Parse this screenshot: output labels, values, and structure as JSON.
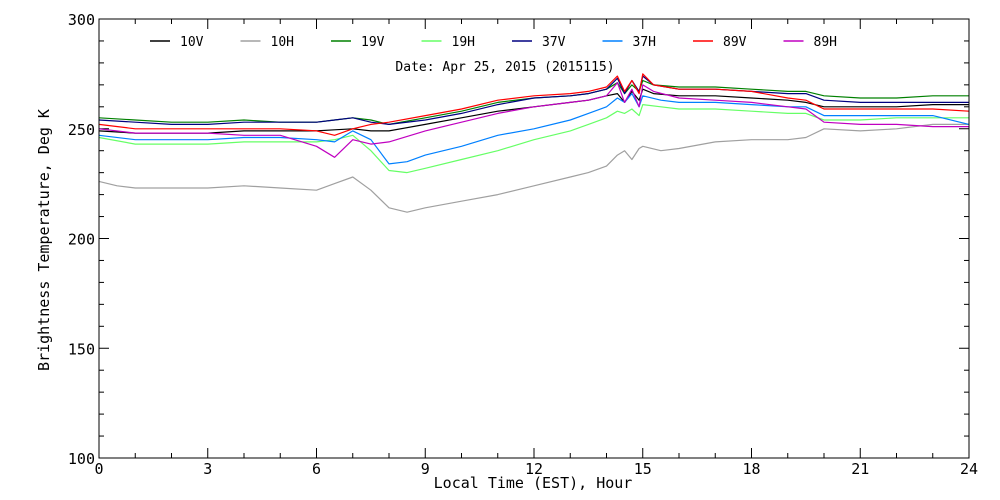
{
  "chart_data": {
    "type": "line",
    "title": "",
    "subtitle": "Date: Apr 25, 2015 (2015115)",
    "xlabel": "Local Time (EST), Hour",
    "ylabel": "Brightness Temperature, Deg K",
    "xlim": [
      0,
      24
    ],
    "ylim": [
      100,
      300
    ],
    "xticks": [
      0,
      3,
      6,
      9,
      12,
      15,
      18,
      21,
      24
    ],
    "yticks": [
      100,
      150,
      200,
      250,
      300
    ],
    "grid": false,
    "legend_position": "top",
    "series": [
      {
        "name": "10V",
        "color": "#000000",
        "x": [
          0,
          1,
          2,
          3,
          4,
          5,
          6,
          6.5,
          7,
          7.5,
          8,
          9,
          10,
          11,
          12,
          13,
          13.5,
          14,
          14.3,
          14.5,
          14.7,
          14.9,
          15,
          15.3,
          16,
          17,
          18,
          19,
          19.5,
          20,
          21,
          22,
          23,
          24
        ],
        "y": [
          249,
          248,
          248,
          248,
          249,
          249,
          249,
          249.5,
          250,
          249,
          249,
          252,
          255,
          258,
          260,
          262,
          263,
          265,
          266,
          262,
          267,
          263,
          268,
          266,
          265,
          265,
          264,
          263,
          262,
          260,
          260,
          260,
          261,
          261
        ]
      },
      {
        "name": "10H",
        "color": "#a0a0a0",
        "x": [
          0,
          0.5,
          1,
          2,
          3,
          4,
          5,
          6,
          6.5,
          7,
          7.5,
          8,
          8.5,
          9,
          10,
          11,
          12,
          13,
          13.5,
          14,
          14.3,
          14.5,
          14.7,
          14.9,
          15,
          15.5,
          16,
          17,
          18,
          19,
          19.5,
          20,
          21,
          22,
          23,
          24
        ],
        "y": [
          226,
          224,
          223,
          223,
          223,
          224,
          223,
          222,
          225,
          228,
          222,
          214,
          212,
          214,
          217,
          220,
          224,
          228,
          230,
          233,
          238,
          240,
          236,
          241,
          242,
          240,
          241,
          244,
          245,
          245,
          246,
          250,
          249,
          250,
          252,
          252
        ]
      },
      {
        "name": "19V",
        "color": "#008000",
        "x": [
          0,
          1,
          2,
          3,
          4,
          5,
          6,
          6.5,
          7,
          7.5,
          8,
          9,
          10,
          11,
          12,
          13,
          13.5,
          14,
          14.3,
          14.5,
          14.7,
          14.9,
          15,
          15.3,
          16,
          17,
          18,
          19,
          19.5,
          20,
          21,
          22,
          23,
          24
        ],
        "y": [
          255,
          254,
          253,
          253,
          254,
          253,
          253,
          254,
          255,
          254,
          252,
          255,
          258,
          262,
          264,
          265,
          266,
          268,
          271,
          266,
          270,
          267,
          272,
          270,
          269,
          269,
          268,
          267,
          267,
          265,
          264,
          264,
          265,
          265
        ]
      },
      {
        "name": "19H",
        "color": "#66ff66",
        "x": [
          0,
          1,
          2,
          3,
          4,
          5,
          6,
          6.5,
          7,
          7.5,
          8,
          8.5,
          9,
          10,
          11,
          12,
          13,
          13.5,
          14,
          14.3,
          14.5,
          14.7,
          14.9,
          15,
          15.5,
          16,
          17,
          18,
          19,
          19.5,
          20,
          21,
          22,
          23,
          24
        ],
        "y": [
          246,
          243,
          243,
          243,
          244,
          244,
          244,
          245,
          247,
          240,
          231,
          230,
          232,
          236,
          240,
          245,
          249,
          252,
          255,
          258,
          257,
          259,
          256,
          261,
          260,
          259,
          259,
          258,
          257,
          257,
          254,
          254,
          255,
          255,
          255
        ]
      },
      {
        "name": "37V",
        "color": "#000080",
        "x": [
          0,
          1,
          2,
          3,
          4,
          5,
          6,
          6.5,
          7,
          7.5,
          8,
          9,
          10,
          11,
          12,
          13,
          13.5,
          14,
          14.3,
          14.5,
          14.7,
          14.9,
          15,
          15.3,
          16,
          17,
          18,
          19,
          19.5,
          20,
          21,
          22,
          23,
          24
        ],
        "y": [
          254,
          253,
          252,
          252,
          253,
          253,
          253,
          254,
          255,
          253,
          252,
          254,
          257,
          261,
          264,
          265,
          266,
          268,
          273,
          266,
          272,
          267,
          274,
          270,
          268,
          268,
          267,
          266,
          266,
          263,
          262,
          262,
          262,
          262
        ]
      },
      {
        "name": "37H",
        "color": "#0080ff",
        "x": [
          0,
          1,
          2,
          3,
          4,
          5,
          6,
          6.5,
          7,
          7.5,
          8,
          8.5,
          9,
          10,
          11,
          12,
          13,
          13.5,
          14,
          14.3,
          14.5,
          14.7,
          14.9,
          15,
          15.5,
          16,
          17,
          18,
          19,
          19.5,
          20,
          21,
          22,
          23,
          24
        ],
        "y": [
          247,
          245,
          245,
          245,
          246,
          246,
          245,
          244,
          249,
          245,
          234,
          235,
          238,
          242,
          247,
          250,
          254,
          257,
          260,
          264,
          262,
          266,
          260,
          265,
          263,
          262,
          262,
          261,
          260,
          260,
          256,
          256,
          256,
          256,
          252
        ]
      },
      {
        "name": "89V",
        "color": "#ff0000",
        "x": [
          0,
          1,
          2,
          3,
          4,
          5,
          6,
          6.5,
          7,
          7.5,
          8,
          9,
          10,
          11,
          12,
          13,
          13.5,
          14,
          14.3,
          14.5,
          14.7,
          14.9,
          15,
          15.3,
          16,
          17,
          18,
          19,
          19.5,
          20,
          21,
          22,
          23,
          24
        ],
        "y": [
          252,
          250,
          250,
          250,
          250,
          250,
          249,
          247,
          250,
          252,
          253,
          256,
          259,
          263,
          265,
          266,
          267,
          269,
          274,
          267,
          272,
          266,
          275,
          270,
          268,
          268,
          267,
          264,
          263,
          259,
          259,
          259,
          259,
          258
        ]
      },
      {
        "name": "89H",
        "color": "#c000c0",
        "x": [
          0,
          1,
          2,
          3,
          4,
          5,
          6,
          6.5,
          7,
          7.5,
          8,
          9,
          10,
          11,
          12,
          13,
          13.5,
          14,
          14.3,
          14.5,
          14.7,
          14.9,
          15,
          15.3,
          16,
          17,
          18,
          19,
          19.5,
          20,
          21,
          22,
          23,
          24
        ],
        "y": [
          250,
          248,
          248,
          248,
          247,
          247,
          242,
          237,
          245,
          243,
          244,
          249,
          253,
          257,
          260,
          262,
          263,
          265,
          271,
          262,
          268,
          260,
          270,
          267,
          264,
          263,
          262,
          260,
          259,
          253,
          252,
          252,
          251,
          251
        ]
      }
    ]
  }
}
